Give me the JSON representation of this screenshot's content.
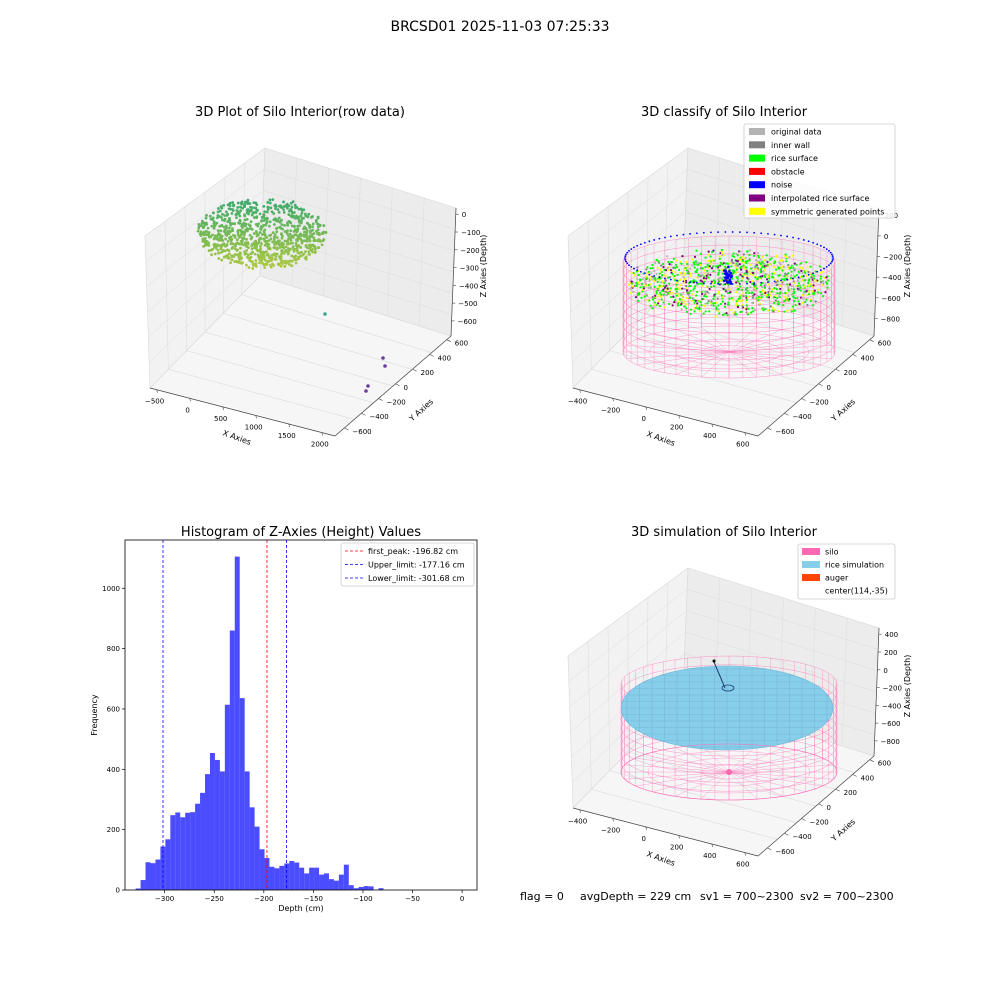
{
  "figure": {
    "suptitle": "BRCSD01 2025-11-03 07:25:33",
    "footer": {
      "flag": "flag = 0",
      "avg_depth": "avgDepth = 229 cm",
      "sv1": "sv1 = 700~2300",
      "sv2": "sv2 = 700~2300"
    }
  },
  "panels": {
    "raw": {
      "title": "3D Plot of Silo Interior(row data)",
      "xlabel": "X Axies",
      "ylabel": "Y Axies",
      "zlabel": "Z Axies (Depth)",
      "x_ticks": [
        "−500",
        "0",
        "500",
        "1000",
        "1500",
        "2000"
      ],
      "y_ticks": [
        "600",
        "400",
        "200",
        "0",
        "−200",
        "−400",
        "−600"
      ],
      "z_ticks": [
        "0",
        "−100",
        "−200",
        "−300",
        "−400",
        "−500",
        "−600"
      ]
    },
    "classify": {
      "title": "3D classify of Silo Interior",
      "xlabel": "X Axies",
      "ylabel": "Y Axies",
      "zlabel": "Z Axies (Depth)",
      "x_ticks": [
        "−400",
        "−200",
        "0",
        "200",
        "400",
        "600"
      ],
      "y_ticks": [
        "600",
        "400",
        "200",
        "0",
        "−200",
        "−400",
        "−600"
      ],
      "z_ticks": [
        "200",
        "0",
        "−200",
        "−400",
        "−600",
        "−800"
      ],
      "legend": [
        {
          "label": "original data",
          "color": "#b3b3b3"
        },
        {
          "label": "inner wall",
          "color": "#808080"
        },
        {
          "label": "rice surface",
          "color": "#00ff00"
        },
        {
          "label": "obstacle",
          "color": "#ff0000"
        },
        {
          "label": "noise",
          "color": "#0000ff"
        },
        {
          "label": "interpolated rice surface",
          "color": "#800080"
        },
        {
          "label": "symmetric generated points",
          "color": "#ffff00"
        }
      ]
    },
    "simulation": {
      "title": "3D simulation of Silo Interior",
      "xlabel": "X Axies",
      "ylabel": "Y Axies",
      "zlabel": "Z Axies (Depth)",
      "x_ticks": [
        "−400",
        "−200",
        "0",
        "200",
        "400",
        "600"
      ],
      "y_ticks": [
        "600",
        "400",
        "200",
        "0",
        "−200",
        "−400",
        "−600"
      ],
      "z_ticks": [
        "400",
        "200",
        "0",
        "−200",
        "−400",
        "−600",
        "−800"
      ],
      "legend": [
        {
          "label": "silo",
          "color": "#ff69b4"
        },
        {
          "label": "rice simulation",
          "color": "#87ceeb"
        },
        {
          "label": "auger",
          "color": "#ff4500"
        },
        {
          "label": "center(114,-35)",
          "color": ""
        }
      ]
    }
  },
  "chart_data": {
    "type": "bar",
    "title": "Histogram of Z-Axies (Height) Values",
    "xlabel": "Depth (cm)",
    "ylabel": "Frequency",
    "xlim": [
      -340,
      15
    ],
    "ylim": [
      0,
      1160
    ],
    "x_ticks": [
      -300,
      -250,
      -200,
      -150,
      -100,
      -50,
      0
    ],
    "y_ticks": [
      0,
      200,
      400,
      600,
      800,
      1000
    ],
    "bar_color": "#0000ff",
    "bin_start": -329.3,
    "bin_width": 5.0,
    "values": [
      5,
      33,
      92,
      89,
      101,
      144,
      168,
      248,
      257,
      241,
      256,
      258,
      286,
      322,
      384,
      454,
      431,
      393,
      614,
      860,
      1105,
      636,
      393,
      274,
      210,
      135,
      106,
      77,
      72,
      80,
      88,
      96,
      91,
      74,
      55,
      74,
      74,
      51,
      55,
      36,
      31,
      51,
      84,
      16,
      6,
      10,
      13,
      12,
      0,
      6
    ],
    "lines": [
      {
        "label": "first_peak: -196.82 cm",
        "x": -196.82,
        "color": "#ff0000"
      },
      {
        "label": "Upper_limit: -177.16 cm",
        "x": -177.16,
        "color": "#0000ff"
      },
      {
        "label": "Lower_limit: -301.68 cm",
        "x": -301.68,
        "color": "#0000ff"
      }
    ],
    "legend_position": "top-right"
  }
}
